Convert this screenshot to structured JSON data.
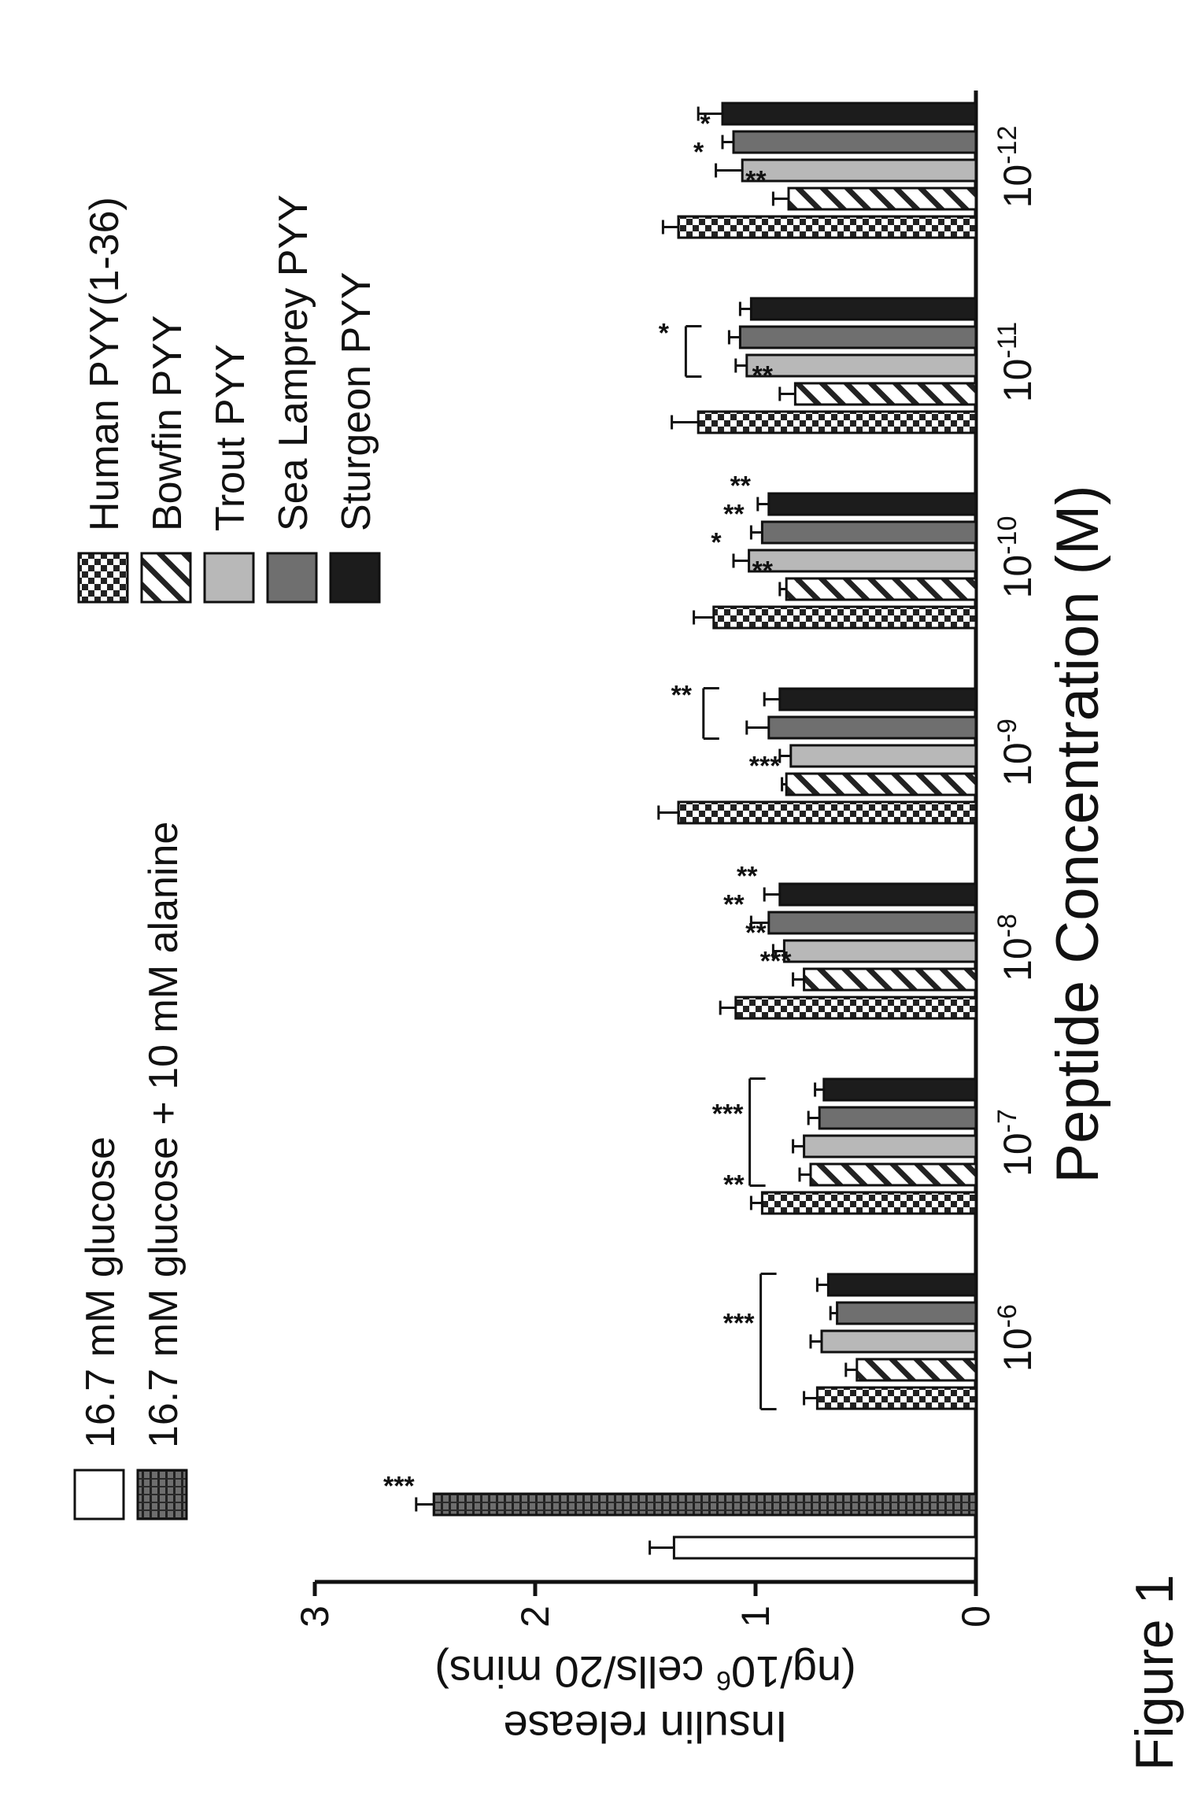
{
  "figure_title": "Figure 1",
  "chart_data": {
    "type": "bar",
    "title": "",
    "ylabel_line1": "Insulin release",
    "ylabel_line2": "(ng/10",
    "ylabel_sup": "6",
    "ylabel_line2_end": " cells/20 mins)",
    "xlabel": "Peptide Concentration (M)",
    "ylim": [
      0,
      3
    ],
    "yticks": [
      0,
      1,
      2,
      3
    ],
    "controls": [
      {
        "name": "16.7 mM glucose",
        "value": 1.37,
        "err": 0.11,
        "pattern": "white",
        "sig": ""
      },
      {
        "name": "16.7 mM glucose + 10 mM alanine",
        "value": 2.46,
        "err": 0.08,
        "pattern": "hstripe",
        "sig": "***"
      }
    ],
    "series": [
      {
        "name": "Human PYY(1-36)",
        "pattern": "checker"
      },
      {
        "name": "Bowfin PYY",
        "pattern": "diag"
      },
      {
        "name": "Trout PYY",
        "pattern": "light"
      },
      {
        "name": "Sea Lamprey PYY",
        "pattern": "mid"
      },
      {
        "name": "Sturgeon PYY",
        "pattern": "dark"
      }
    ],
    "groups": [
      {
        "base": "10",
        "exp": "-6",
        "values": [
          0.72,
          0.54,
          0.7,
          0.63,
          0.67
        ],
        "errs": [
          0.06,
          0.05,
          0.05,
          0.03,
          0.05
        ],
        "sig": [
          "",
          "",
          "",
          "",
          ""
        ],
        "bracket": {
          "from": 0,
          "to": 4,
          "label": "***"
        }
      },
      {
        "base": "10",
        "exp": "-7",
        "values": [
          0.97,
          0.75,
          0.78,
          0.71,
          0.69
        ],
        "errs": [
          0.05,
          0.05,
          0.05,
          0.05,
          0.04
        ],
        "sig": [
          "**",
          "",
          "",
          "",
          ""
        ],
        "bracket": {
          "from": 1,
          "to": 4,
          "label": "***"
        }
      },
      {
        "base": "10",
        "exp": "-8",
        "values": [
          1.09,
          0.78,
          0.87,
          0.94,
          0.89
        ],
        "errs": [
          0.07,
          0.05,
          0.05,
          0.08,
          0.07
        ],
        "sig": [
          "",
          "***",
          "**",
          "**",
          "**"
        ],
        "bracket": null
      },
      {
        "base": "10",
        "exp": "-9",
        "values": [
          1.35,
          0.86,
          0.84,
          0.94,
          0.89
        ],
        "errs": [
          0.09,
          0.02,
          0.05,
          0.1,
          0.07
        ],
        "sig": [
          "",
          "***",
          "",
          "",
          ""
        ],
        "bracket": {
          "from": 3,
          "to": 4,
          "label": "**"
        }
      },
      {
        "base": "10",
        "exp": "-10",
        "values": [
          1.19,
          0.86,
          1.03,
          0.97,
          0.94
        ],
        "errs": [
          0.09,
          0.03,
          0.07,
          0.05,
          0.05
        ],
        "sig": [
          "",
          "**",
          "*",
          "**",
          "**"
        ],
        "bracket": null
      },
      {
        "base": "10",
        "exp": "-11",
        "values": [
          1.26,
          0.82,
          1.04,
          1.07,
          1.02
        ],
        "errs": [
          0.12,
          0.07,
          0.05,
          0.05,
          0.05
        ],
        "sig": [
          "",
          "**",
          "",
          "",
          ""
        ],
        "bracket": {
          "from": 2,
          "to": 3,
          "label": "*"
        }
      },
      {
        "base": "10",
        "exp": "-12",
        "values": [
          1.35,
          0.85,
          1.06,
          1.1,
          1.15
        ],
        "errs": [
          0.07,
          0.07,
          0.12,
          0.05,
          0.11
        ],
        "sig": [
          "",
          "**",
          "*",
          "*",
          ""
        ],
        "bracket": null
      }
    ],
    "legend_placement": "top",
    "grid": false
  }
}
